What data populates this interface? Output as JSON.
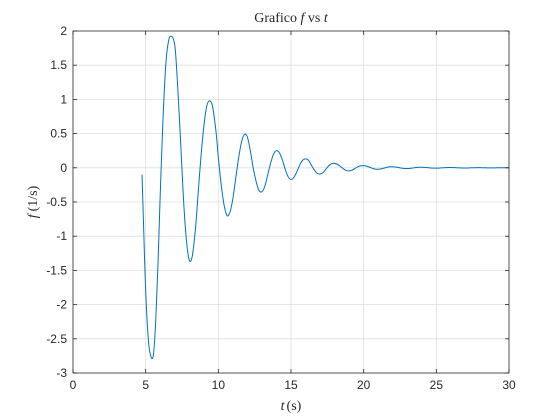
{
  "chart_data": {
    "type": "line",
    "title_prefix": "Grafico ",
    "title_var_f": "f",
    "title_mid": " vs ",
    "title_var_t": "t",
    "xlabel_var": "t",
    "xlabel_unit": "(s)",
    "ylabel_var": "f",
    "ylabel_unit": "(1/s)",
    "xlim": [
      0,
      30
    ],
    "ylim": [
      -3,
      2
    ],
    "xticks": [
      0,
      5,
      10,
      15,
      20,
      25,
      30
    ],
    "yticks": [
      -3,
      -2.5,
      -2,
      -1.5,
      -1,
      -0.5,
      0,
      0.5,
      1,
      1.5,
      2
    ],
    "grid": true,
    "line_color": "#0072bd",
    "series": [
      {
        "x": [
          4.75,
          4.85,
          5.0,
          5.2,
          5.4,
          5.55,
          5.7,
          5.85,
          6.0,
          6.2,
          6.4,
          6.6,
          6.8,
          6.95,
          7.05,
          7.2,
          7.4,
          7.6,
          7.8,
          8.0,
          8.2,
          8.4,
          8.5,
          8.6,
          8.8,
          9.0,
          9.2,
          9.4,
          9.6,
          9.8,
          9.9,
          10.0,
          10.2,
          10.4,
          10.6,
          10.8,
          11.0,
          11.2,
          11.4,
          11.6,
          11.8,
          12.0,
          12.2,
          12.4,
          12.6,
          12.8,
          13.0,
          13.2,
          13.4,
          13.6,
          13.8,
          14.0,
          14.2,
          14.4,
          14.6,
          14.8,
          15.0,
          15.2,
          15.4,
          15.6,
          15.8,
          16.0,
          16.2,
          16.4,
          16.6,
          16.8,
          17.0,
          17.2,
          17.4,
          17.6,
          17.8,
          18.0,
          18.2,
          18.4,
          18.6,
          18.8,
          19.0,
          19.2,
          19.4,
          19.6,
          19.8,
          20.0,
          20.2,
          20.4,
          20.6,
          20.8,
          21.0,
          21.2,
          21.4,
          21.6,
          21.8,
          22.0,
          22.2,
          22.4,
          22.6,
          22.8,
          23.0,
          23.2,
          23.4,
          23.6,
          23.8,
          24.0,
          24.2,
          24.4,
          24.6,
          24.8,
          25.0,
          25.2,
          25.4,
          25.6,
          25.8,
          26.0,
          26.2,
          26.4,
          26.6,
          26.8,
          27.0,
          27.2,
          27.4,
          27.6,
          27.8,
          28.0,
          28.2,
          28.4,
          28.6,
          28.8,
          29.0,
          29.2,
          29.4,
          29.6,
          29.8,
          30.0
        ],
        "values": [
          -0.1,
          -0.8,
          -1.8,
          -2.55,
          -2.78,
          -2.7,
          -2.2,
          -1.4,
          -0.4,
          0.75,
          1.55,
          1.88,
          1.92,
          1.85,
          1.7,
          1.2,
          0.4,
          -0.45,
          -1.05,
          -1.35,
          -1.3,
          -0.95,
          -0.7,
          -0.4,
          0.15,
          0.6,
          0.9,
          0.98,
          0.9,
          0.6,
          0.4,
          0.15,
          -0.25,
          -0.55,
          -0.7,
          -0.65,
          -0.45,
          -0.15,
          0.15,
          0.38,
          0.49,
          0.45,
          0.25,
          0.0,
          -0.2,
          -0.33,
          -0.35,
          -0.27,
          -0.1,
          0.07,
          0.2,
          0.25,
          0.22,
          0.12,
          -0.02,
          -0.13,
          -0.17,
          -0.14,
          -0.06,
          0.04,
          0.11,
          0.13,
          0.11,
          0.04,
          -0.03,
          -0.08,
          -0.09,
          -0.07,
          -0.02,
          0.03,
          0.06,
          0.065,
          0.05,
          0.02,
          -0.015,
          -0.04,
          -0.045,
          -0.035,
          -0.01,
          0.015,
          0.03,
          0.032,
          0.025,
          0.01,
          -0.008,
          -0.02,
          -0.022,
          -0.016,
          -0.005,
          0.008,
          0.015,
          0.016,
          0.012,
          0.004,
          -0.004,
          -0.01,
          -0.011,
          -0.008,
          -0.002,
          0.004,
          0.008,
          0.008,
          0.006,
          0.002,
          -0.002,
          -0.005,
          -0.005,
          -0.004,
          -0.001,
          0.002,
          0.004,
          0.004,
          0.003,
          0.001,
          -0.001,
          -0.002,
          -0.002,
          -0.002,
          0.0,
          0.001,
          0.002,
          0.002,
          0.001,
          0.0,
          -0.001,
          -0.001,
          -0.001,
          0.0,
          0.0,
          0.001,
          0.0,
          0.0
        ]
      }
    ]
  }
}
